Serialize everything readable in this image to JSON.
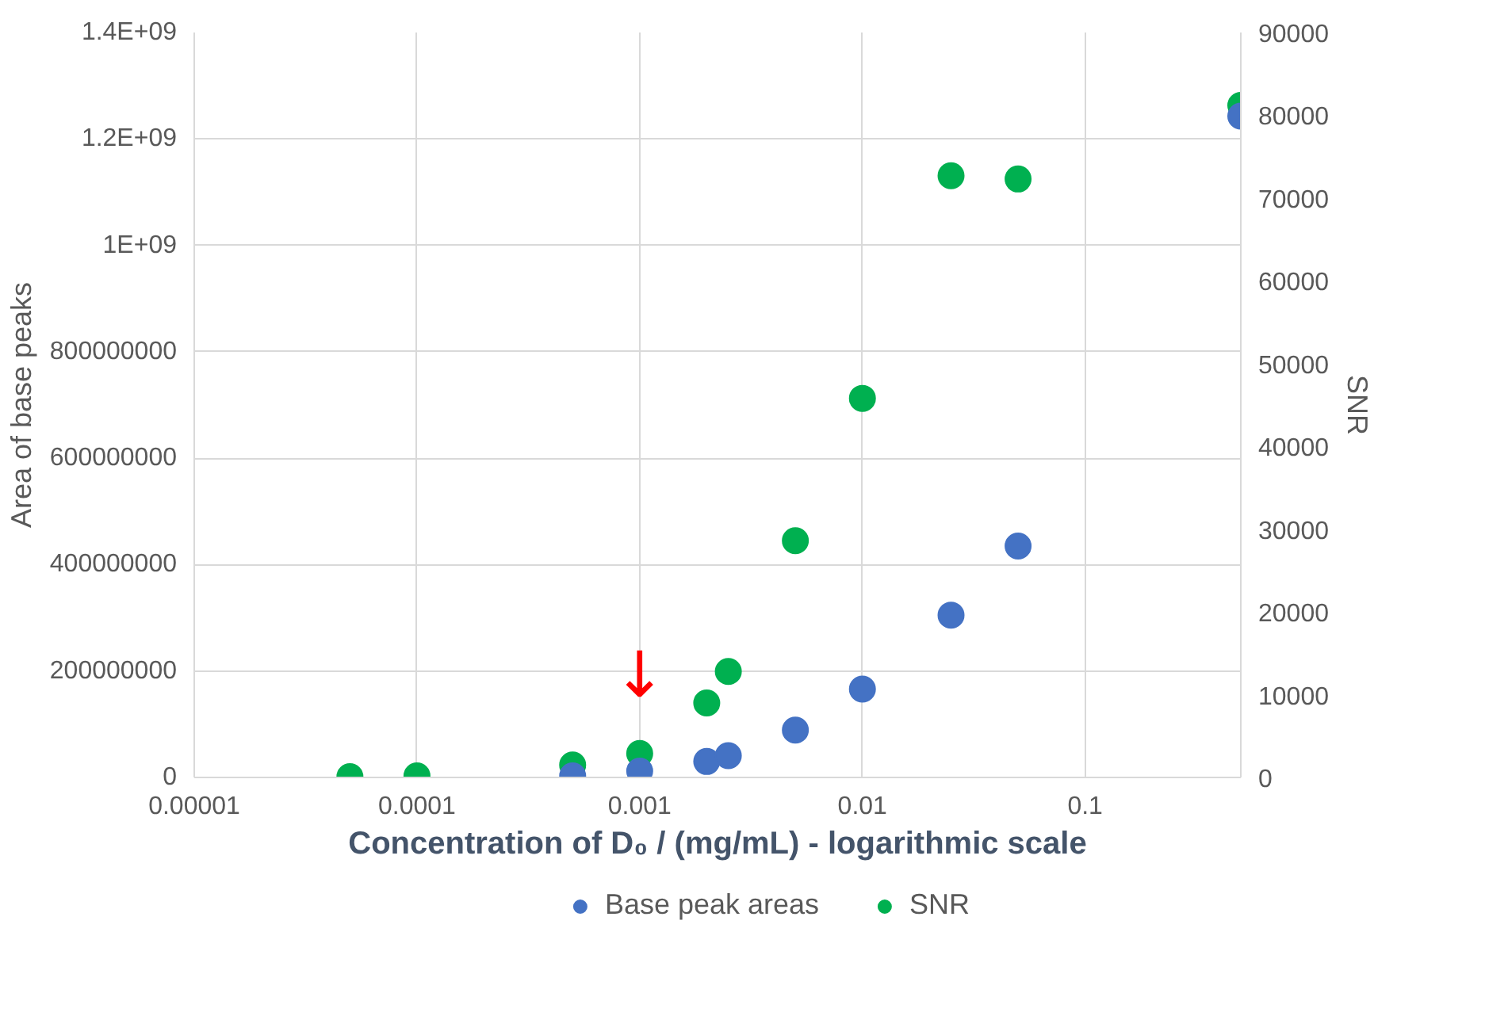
{
  "chart_data": {
    "type": "scatter",
    "xlabel": "Concentration of D₀ / (mg/mL) - logarithmic scale",
    "ylabel": "Area of base peaks",
    "y2label": "SNR",
    "x": [
      5e-05,
      0.0001,
      0.0005,
      0.001,
      0.002,
      0.0025,
      0.005,
      0.01,
      0.025,
      0.05,
      0.5
    ],
    "series": [
      {
        "name": "Base peak areas",
        "color": "#4472c4",
        "values": [
          null,
          null,
          3000000,
          12000000,
          30000000,
          41000000,
          89000000,
          166000000,
          305000000,
          435000000,
          1243000000
        ]
      },
      {
        "name": "SNR",
        "color": "#00b050",
        "axis": "y2",
        "values": [
          100,
          200,
          1500,
          2900,
          9000,
          12800,
          28600,
          45800,
          72700,
          72300,
          81200
        ]
      }
    ],
    "log": "x",
    "xlim": [
      1e-05,
      0.5
    ],
    "xticks": [
      {
        "value": 1e-05,
        "label": "0.00001"
      },
      {
        "value": 0.0001,
        "label": "0.0001"
      },
      {
        "value": 0.001,
        "label": "0.001"
      },
      {
        "value": 0.01,
        "label": "0.01"
      },
      {
        "value": 0.1,
        "label": "0.1"
      }
    ],
    "ylim": [
      0,
      1400000000
    ],
    "yticks": [
      0,
      200000000,
      400000000,
      600000000,
      800000000,
      {
        "value": 1000000000,
        "label": "1E+09"
      },
      {
        "value": 1200000000,
        "label": "1.2E+09"
      },
      {
        "value": 1400000000,
        "label": "1.4E+09"
      }
    ],
    "y2lim": [
      0,
      90000
    ],
    "y2ticks": [
      0,
      10000,
      20000,
      30000,
      40000,
      50000,
      60000,
      70000,
      80000,
      90000
    ],
    "annotations": [
      {
        "text": "↓",
        "x": 0.001,
        "y": 12000000
      }
    ],
    "grid": true,
    "legend": "bottom",
    "marker": "circle"
  }
}
